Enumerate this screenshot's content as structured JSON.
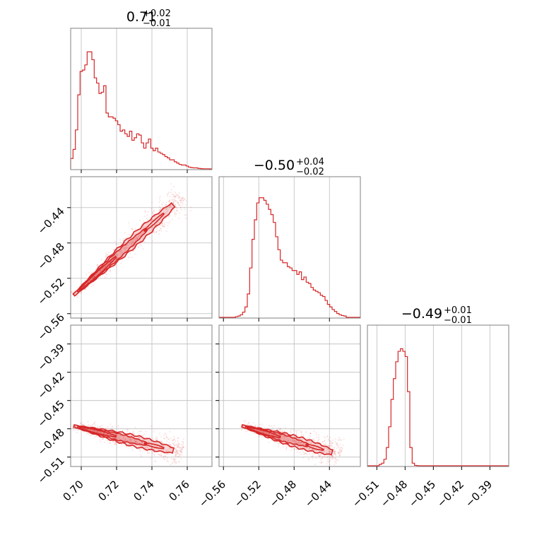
{
  "figure": {
    "type": "corner-plot",
    "accent_color": "#d62728"
  },
  "chart_data": {
    "type": "corner",
    "parameters": [
      {
        "name": "p0",
        "range": [
          0.694,
          0.774
        ],
        "ticks": [
          0.7,
          0.72,
          0.74,
          0.76
        ],
        "tick_labels": [
          "0.70",
          "0.72",
          "0.74",
          "0.76"
        ],
        "title": {
          "main": "0.71",
          "sup": "+0.02",
          "sub": "−0.01"
        }
      },
      {
        "name": "p1",
        "range": [
          -0.565,
          -0.405
        ],
        "ticks": [
          -0.56,
          -0.52,
          -0.48,
          -0.44
        ],
        "tick_labels": [
          "−0.56",
          "−0.52",
          "−0.48",
          "−0.44"
        ],
        "title": {
          "main": "−0.50",
          "sup": "+0.04",
          "sub": "−0.02"
        }
      },
      {
        "name": "p2",
        "range": [
          -0.52,
          -0.37
        ],
        "ticks": [
          -0.51,
          -0.48,
          -0.45,
          -0.42,
          -0.39
        ],
        "tick_labels": [
          "−0.51",
          "−0.48",
          "−0.45",
          "−0.42",
          "−0.39"
        ],
        "title": {
          "main": "−0.49",
          "sup": "+0.01",
          "sub": "−0.01"
        }
      }
    ],
    "histograms": [
      {
        "param": 0,
        "counts": [
          0.08,
          0.15,
          0.3,
          0.57,
          0.75,
          0.76,
          0.8,
          0.9,
          0.9,
          0.84,
          0.7,
          0.66,
          0.58,
          0.59,
          0.64,
          0.43,
          0.4,
          0.4,
          0.39,
          0.37,
          0.34,
          0.29,
          0.3,
          0.27,
          0.25,
          0.29,
          0.22,
          0.24,
          0.27,
          0.26,
          0.2,
          0.16,
          0.2,
          0.23,
          0.16,
          0.14,
          0.16,
          0.13,
          0.12,
          0.11,
          0.095,
          0.085,
          0.07,
          0.07,
          0.055,
          0.045,
          0.035,
          0.03,
          0.03,
          0.022,
          0.014,
          0.01,
          0.008,
          0.008,
          0.004,
          0.002,
          0.001,
          0.001,
          0.001,
          0.0
        ]
      },
      {
        "param": 1,
        "counts": [
          0.0,
          0.0,
          0.0,
          0.0,
          0.0,
          0.0,
          0.0,
          0.005,
          0.01,
          0.02,
          0.04,
          0.08,
          0.18,
          0.38,
          0.6,
          0.75,
          0.88,
          0.92,
          0.92,
          0.9,
          0.87,
          0.83,
          0.79,
          0.73,
          0.62,
          0.52,
          0.44,
          0.42,
          0.42,
          0.39,
          0.38,
          0.36,
          0.36,
          0.33,
          0.35,
          0.29,
          0.31,
          0.27,
          0.26,
          0.23,
          0.21,
          0.2,
          0.19,
          0.17,
          0.16,
          0.13,
          0.1,
          0.08,
          0.06,
          0.045,
          0.03,
          0.02,
          0.014,
          0.01,
          0.0,
          0.0,
          0.0,
          0.0,
          0.0,
          0.0
        ]
      },
      {
        "param": 2,
        "counts": [
          0.0,
          0.0,
          0.0,
          0.0,
          0.0,
          0.01,
          0.02,
          0.05,
          0.14,
          0.3,
          0.51,
          0.67,
          0.8,
          0.88,
          0.9,
          0.88,
          0.84,
          0.57,
          0.14,
          0.02,
          0.003,
          0.001,
          0.0,
          0.0,
          0.0,
          0.0,
          0.0,
          0.0,
          0.0,
          0.0,
          0.0,
          0.0,
          0.0,
          0.0,
          0.0,
          0.0,
          0.0,
          0.0,
          0.0,
          0.0,
          0.0,
          0.0,
          0.0,
          0.0,
          0.0,
          0.0,
          0.0,
          0.0,
          0.0,
          0.0,
          0.0,
          0.0,
          0.0,
          0.0,
          0.0,
          0.0,
          0.0,
          0.0,
          0.0,
          0.0
        ]
      }
    ],
    "joint": [
      {
        "x_param": 0,
        "y_param": 1,
        "trend": {
          "x": [
            0.698,
            0.752
          ],
          "y": [
            -0.535,
            -0.437
          ]
        },
        "contour_levels": 3
      },
      {
        "x_param": 0,
        "y_param": 2,
        "trend": {
          "x": [
            0.698,
            0.752
          ],
          "y": [
            -0.478,
            -0.503
          ]
        },
        "contour_levels": 3
      },
      {
        "x_param": 1,
        "y_param": 2,
        "trend": {
          "x": [
            -0.535,
            -0.437
          ],
          "y": [
            -0.478,
            -0.505
          ]
        },
        "contour_levels": 3
      }
    ]
  }
}
